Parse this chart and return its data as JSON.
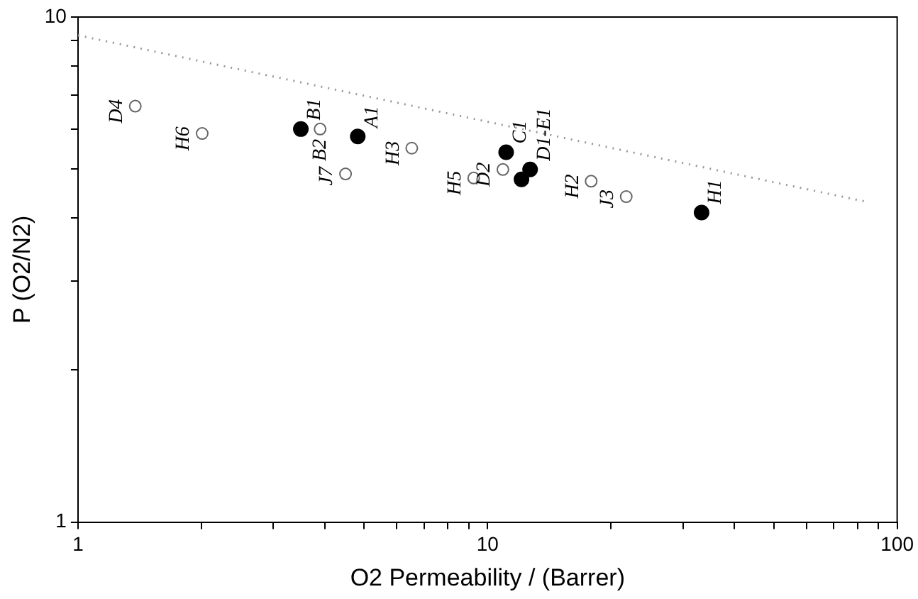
{
  "chart_data": {
    "type": "scatter",
    "xlabel": "O2 Permeability / (Barrer)",
    "ylabel": "P (O2/N2)",
    "log": "xy",
    "grid": false,
    "legend": false,
    "marker": "circle",
    "xlim": [
      1,
      100
    ],
    "ylim": [
      1,
      10
    ],
    "xticks": [
      1,
      {
        "value": 2,
        "label": null
      },
      {
        "value": 3,
        "label": null
      },
      {
        "value": 4,
        "label": null
      },
      {
        "value": 5,
        "label": null
      },
      {
        "value": 6,
        "label": null
      },
      {
        "value": 7,
        "label": null
      },
      {
        "value": 8,
        "label": null
      },
      {
        "value": 9,
        "label": null
      },
      10,
      {
        "value": 20,
        "label": null
      },
      {
        "value": 30,
        "label": null
      },
      {
        "value": 40,
        "label": null
      },
      {
        "value": 50,
        "label": null
      },
      {
        "value": 60,
        "label": null
      },
      {
        "value": 70,
        "label": null
      },
      {
        "value": 80,
        "label": null
      },
      {
        "value": 90,
        "label": null
      },
      100
    ],
    "yticks": [
      1,
      {
        "value": 2,
        "label": null
      },
      {
        "value": 3,
        "label": null
      },
      {
        "value": 4,
        "label": null
      },
      {
        "value": 5,
        "label": null
      },
      {
        "value": 6,
        "label": null
      },
      {
        "value": 7,
        "label": null
      },
      {
        "value": 8,
        "label": null
      },
      {
        "value": 9,
        "label": null
      },
      10
    ],
    "series": [
      {
        "color": "#000000",
        "x": [
          3.5,
          4.82,
          11.1,
          12.1,
          12.7,
          33.3
        ],
        "values": [
          6.0,
          5.8,
          5.4,
          4.77,
          4.99,
          4.1
        ]
      },
      {
        "color": "#666666",
        "x": [
          1.38,
          2.01,
          3.9,
          4.5,
          6.53,
          9.25,
          10.9,
          17.9,
          21.8
        ],
        "values": [
          6.66,
          5.88,
          6.0,
          4.89,
          5.5,
          4.8,
          4.99,
          4.73,
          4.41
        ]
      },
      {
        "type": "line",
        "color": "#999999",
        "line_style": "dotted",
        "marker": "none",
        "x": [
          1,
          85
        ],
        "values": [
          9.2,
          4.3
        ]
      }
    ],
    "annotations": [
      {
        "text": "D4",
        "x": 1.38,
        "y": 6.66
      },
      {
        "text": "H6",
        "x": 2.01,
        "y": 5.88
      },
      {
        "text": "B1",
        "x": 3.5,
        "y": 6.0
      },
      {
        "text": "B2",
        "x": 3.9,
        "y": 6.0
      },
      {
        "text": "A1",
        "x": 4.82,
        "y": 5.8
      },
      {
        "text": "J7",
        "x": 4.5,
        "y": 4.89
      },
      {
        "text": "H3",
        "x": 6.53,
        "y": 5.5
      },
      {
        "text": "H5",
        "x": 9.25,
        "y": 4.8
      },
      {
        "text": "D2",
        "x": 10.9,
        "y": 4.99
      },
      {
        "text": "C1",
        "x": 11.1,
        "y": 5.4
      },
      {
        "text": "D1-E1",
        "x": 12.7,
        "y": 4.99
      },
      {
        "text": "H2",
        "x": 17.9,
        "y": 4.73
      },
      {
        "text": "J3",
        "x": 21.8,
        "y": 4.41
      },
      {
        "text": "H1",
        "x": 33.3,
        "y": 4.1
      }
    ]
  }
}
